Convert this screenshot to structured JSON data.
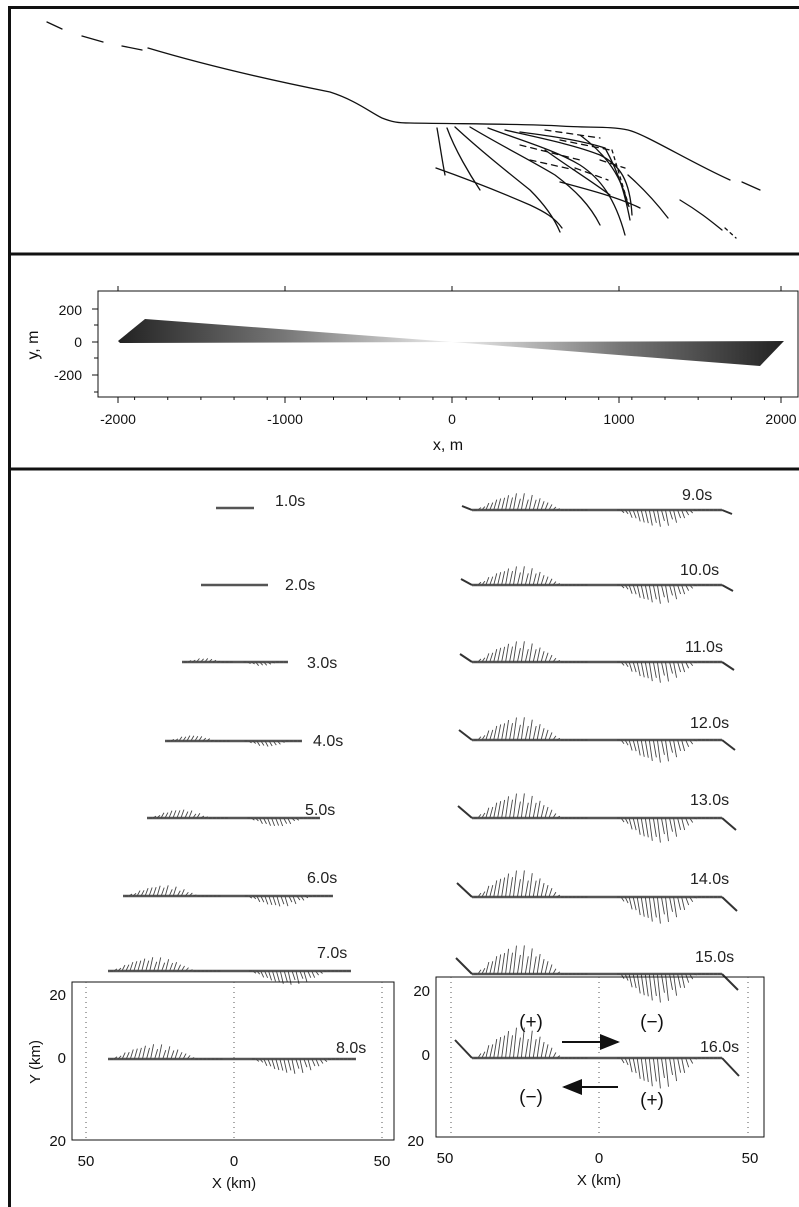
{
  "panel_b": {
    "ylabel": "y, m",
    "xlabel": "x, m",
    "xticks": [
      "-2000",
      "-1000",
      "0",
      "1000",
      "2000"
    ],
    "yticks": [
      "200",
      "0",
      "-200"
    ]
  },
  "panel_c": {
    "left_column": [
      "1.0s",
      "2.0s",
      "3.0s",
      "4.0s",
      "5.0s",
      "6.0s",
      "7.0s"
    ],
    "right_column": [
      "9.0s",
      "10.0s",
      "11.0s",
      "12.0s",
      "13.0s",
      "14.0s",
      "15.0s"
    ],
    "snap_left": {
      "time": "8.0s",
      "ylabel": "Y (km)",
      "xlabel": "X (km)",
      "xticks": [
        "50",
        "0",
        "50"
      ],
      "yticks": [
        "20",
        "0",
        "20"
      ]
    },
    "snap_right": {
      "time": "16.0s",
      "xlabel": "X (km)",
      "xticks": [
        "50",
        "0",
        "50"
      ],
      "yticks": [
        "20",
        "0",
        "20"
      ],
      "signs": [
        "(+)",
        "(−)",
        "(−)",
        "(+)"
      ]
    }
  }
}
